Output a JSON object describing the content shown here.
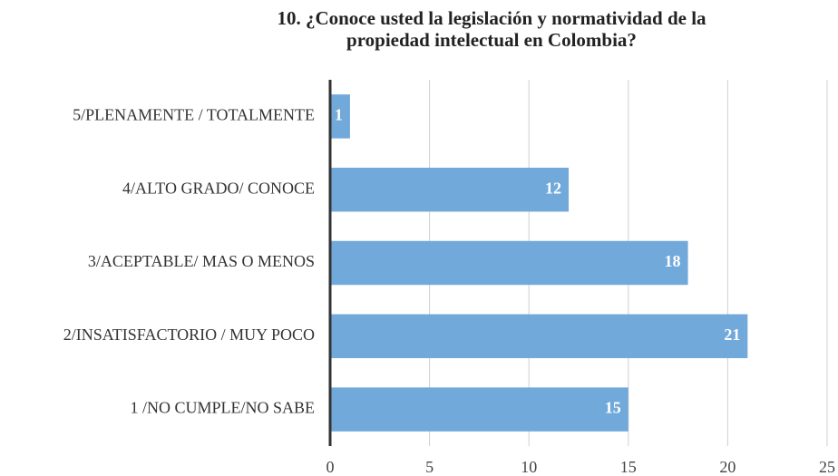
{
  "chart_data": {
    "type": "bar",
    "orientation": "horizontal",
    "title": "10. ¿Conoce usted la legislación y normatividad de la propiedad intelectual en Colombia?",
    "categories": [
      "5/PLENAMENTE / TOTALMENTE",
      "4/ALTO GRADO/ CONOCE",
      "3/ACEPTABLE/ MAS O MENOS",
      "2/INSATISFACTORIO / MUY POCO",
      "1 /NO CUMPLE/NO SABE"
    ],
    "values": [
      1,
      12,
      18,
      21,
      15
    ],
    "color": "#72a9db",
    "xlim": [
      0,
      25
    ],
    "xticks": [
      0,
      5,
      10,
      15,
      20,
      25
    ],
    "grid": true
  }
}
